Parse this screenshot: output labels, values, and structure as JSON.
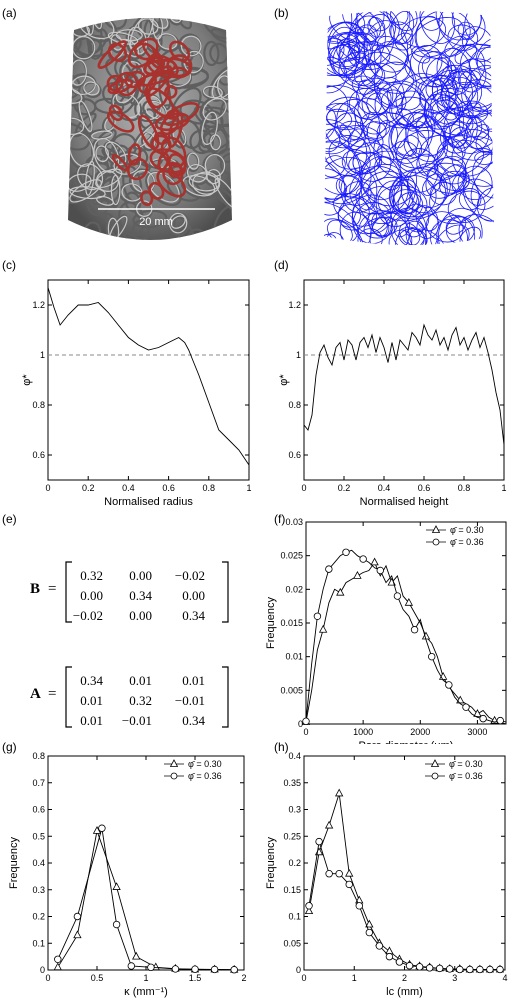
{
  "panels": {
    "a": {
      "label": "(a)",
      "scale_text": "20 mm"
    },
    "b": {
      "label": "(b)"
    },
    "c": {
      "label": "(c)"
    },
    "d": {
      "label": "(d)"
    },
    "e": {
      "label": "(e)"
    },
    "f": {
      "label": "(f)"
    },
    "g": {
      "label": "(g)"
    },
    "h": {
      "label": "(h)"
    }
  },
  "matrices": {
    "B": {
      "name": "B",
      "rows": [
        [
          "0.32",
          "0.00",
          "−0.02"
        ],
        [
          "0.00",
          "0.34",
          "0.00"
        ],
        [
          "−0.02",
          "0.00",
          "0.34"
        ]
      ]
    },
    "A": {
      "name": "A",
      "rows": [
        [
          "0.34",
          "0.01",
          "0.01"
        ],
        [
          "0.01",
          "0.32",
          "−0.01"
        ],
        [
          "0.01",
          "−0.01",
          "0.34"
        ]
      ]
    }
  },
  "colors": {
    "highlight_fiber": "#a8322e",
    "fiber_gray": "#8a8a8a",
    "line_blue": "#1a1aff"
  },
  "chart_data": [
    {
      "id": "c",
      "type": "line",
      "xlabel": "Normalised radius",
      "ylabel": "φ*",
      "xlim": [
        0,
        1
      ],
      "ylim": [
        0.5,
        1.3
      ],
      "xticks": [
        "0",
        "0.2",
        "0.4",
        "0.6",
        "0.8",
        "1"
      ],
      "yticks": [
        "0.6",
        "0.8",
        "1",
        "1.2"
      ],
      "reference_line": 1,
      "x": [
        0,
        0.03,
        0.06,
        0.1,
        0.15,
        0.2,
        0.25,
        0.3,
        0.35,
        0.4,
        0.45,
        0.5,
        0.55,
        0.6,
        0.65,
        0.68,
        0.7,
        0.72,
        0.75,
        0.8,
        0.85,
        0.9,
        0.95,
        1.0
      ],
      "y": [
        1.27,
        1.19,
        1.12,
        1.16,
        1.2,
        1.2,
        1.21,
        1.17,
        1.12,
        1.07,
        1.04,
        1.02,
        1.03,
        1.05,
        1.07,
        1.05,
        1.02,
        0.98,
        0.92,
        0.81,
        0.7,
        0.66,
        0.62,
        0.56
      ]
    },
    {
      "id": "d",
      "type": "line",
      "xlabel": "Normalised height",
      "ylabel": "φ*",
      "xlim": [
        0,
        1
      ],
      "ylim": [
        0.5,
        1.3
      ],
      "xticks": [
        "0",
        "0.2",
        "0.4",
        "0.6",
        "0.8",
        "1"
      ],
      "yticks": [
        "0.6",
        "0.8",
        "1",
        "1.2"
      ],
      "reference_line": 1,
      "x": [
        0,
        0.02,
        0.04,
        0.06,
        0.08,
        0.1,
        0.12,
        0.14,
        0.16,
        0.18,
        0.2,
        0.22,
        0.24,
        0.26,
        0.28,
        0.3,
        0.32,
        0.34,
        0.36,
        0.38,
        0.4,
        0.42,
        0.44,
        0.46,
        0.48,
        0.5,
        0.52,
        0.54,
        0.56,
        0.58,
        0.6,
        0.62,
        0.64,
        0.66,
        0.68,
        0.7,
        0.72,
        0.74,
        0.76,
        0.78,
        0.8,
        0.82,
        0.84,
        0.86,
        0.88,
        0.9,
        0.92,
        0.94,
        0.96,
        0.98,
        1.0
      ],
      "y": [
        0.72,
        0.7,
        0.76,
        0.92,
        1.01,
        1.04,
        0.99,
        0.96,
        1.03,
        1.05,
        0.98,
        1.06,
        1.04,
        0.98,
        1.05,
        1.07,
        1.03,
        1.08,
        1.01,
        1.07,
        1.03,
        0.97,
        1.05,
        0.98,
        1.06,
        1.04,
        1.02,
        1.09,
        1.07,
        1.04,
        1.12,
        1.08,
        1.06,
        1.1,
        1.04,
        1.07,
        1.02,
        1.08,
        1.11,
        1.04,
        1.07,
        1.02,
        1.06,
        1.09,
        1.03,
        1.07,
        1.01,
        0.94,
        0.85,
        0.78,
        0.64
      ]
    },
    {
      "id": "f",
      "type": "line",
      "xlabel": "Pore diameter (μm)",
      "ylabel": "Frequency",
      "xlim": [
        0,
        3500
      ],
      "ylim": [
        0,
        0.03
      ],
      "xticks": [
        "0",
        "1000",
        "2000",
        "3000"
      ],
      "yticks": [
        "0",
        "0.005",
        "0.01",
        "0.015",
        "0.02",
        "0.025",
        "0.03"
      ],
      "legend": [
        "φ̄ = 0.30",
        "φ̄ = 0.36"
      ],
      "series": [
        {
          "name": "φ̄ = 0.30",
          "marker": "triangle",
          "x": [
            0,
            100,
            200,
            300,
            400,
            500,
            600,
            700,
            800,
            900,
            1000,
            1100,
            1200,
            1300,
            1400,
            1500,
            1600,
            1700,
            1800,
            1900,
            2000,
            2100,
            2200,
            2300,
            2400,
            2500,
            2600,
            2700,
            2800,
            2900,
            3000,
            3100,
            3200,
            3300,
            3400,
            3500
          ],
          "y": [
            0.0003,
            0.005,
            0.011,
            0.014,
            0.018,
            0.02,
            0.0195,
            0.021,
            0.0215,
            0.022,
            0.0225,
            0.0228,
            0.024,
            0.022,
            0.0235,
            0.021,
            0.022,
            0.019,
            0.018,
            0.0165,
            0.015,
            0.013,
            0.012,
            0.01,
            0.007,
            0.0055,
            0.0045,
            0.0035,
            0.003,
            0.0025,
            0.0015,
            0.002,
            0.001,
            0.0005,
            0.0003,
            0.0
          ],
          "marker_idx": [
            0,
            3,
            6,
            9,
            12,
            15,
            18,
            21,
            24,
            27,
            30,
            33
          ]
        },
        {
          "name": "φ̄ = 0.36",
          "marker": "circle",
          "x": [
            0,
            100,
            200,
            300,
            400,
            500,
            600,
            700,
            800,
            900,
            1000,
            1100,
            1200,
            1300,
            1400,
            1500,
            1600,
            1700,
            1800,
            1900,
            2000,
            2100,
            2200,
            2300,
            2400,
            2500,
            2600,
            2700,
            2800,
            2900,
            3000,
            3100,
            3200,
            3300,
            3400,
            3500
          ],
          "y": [
            0.0004,
            0.009,
            0.016,
            0.02,
            0.023,
            0.024,
            0.025,
            0.0255,
            0.0258,
            0.025,
            0.0245,
            0.024,
            0.0232,
            0.0228,
            0.021,
            0.022,
            0.019,
            0.017,
            0.016,
            0.014,
            0.0155,
            0.0125,
            0.01,
            0.008,
            0.0065,
            0.0058,
            0.004,
            0.003,
            0.0025,
            0.0015,
            0.001,
            0.0008,
            0.0005,
            0.0003,
            0.0005,
            0.0003
          ],
          "marker_idx": [
            0,
            2,
            4,
            7,
            10,
            13,
            16,
            19,
            22,
            25,
            28,
            31,
            34
          ]
        }
      ]
    },
    {
      "id": "g",
      "type": "line",
      "xlabel": "κ (mm⁻¹)",
      "ylabel": "Frequency",
      "xlim": [
        0,
        2
      ],
      "ylim": [
        0,
        0.8
      ],
      "xticks": [
        "0",
        "0.5",
        "1",
        "1.5",
        "2"
      ],
      "yticks": [
        "0",
        "0.1",
        "0.2",
        "0.3",
        "0.4",
        "0.5",
        "0.6",
        "0.7",
        "0.8"
      ],
      "legend": [
        "φ̄ = 0.30",
        "φ̄ = 0.36"
      ],
      "series": [
        {
          "name": "φ̄ = 0.30",
          "marker": "triangle",
          "x": [
            0.1,
            0.3,
            0.5,
            0.7,
            0.9,
            1.1,
            1.3,
            1.5,
            1.7,
            1.9
          ],
          "y": [
            0.01,
            0.13,
            0.52,
            0.31,
            0.05,
            0.01,
            0.005,
            0.002,
            0.002,
            0.001
          ]
        },
        {
          "name": "φ̄ = 0.36",
          "marker": "circle",
          "x": [
            0.1,
            0.3,
            0.55,
            0.7,
            0.85,
            1.05,
            1.3,
            1.5,
            1.7,
            1.9
          ],
          "y": [
            0.04,
            0.2,
            0.53,
            0.17,
            0.015,
            0.01,
            0.004,
            0.003,
            0.002,
            0.001
          ]
        }
      ]
    },
    {
      "id": "h",
      "type": "line",
      "xlabel": "lc (mm)",
      "ylabel": "Frequency",
      "xlim": [
        0,
        4
      ],
      "ylim": [
        0,
        0.4
      ],
      "xticks": [
        "0",
        "1",
        "2",
        "3",
        "4"
      ],
      "yticks": [
        "0",
        "0.05",
        "0.1",
        "0.15",
        "0.2",
        "0.25",
        "0.3",
        "0.35",
        "0.4"
      ],
      "legend": [
        "φ̄ = 0.30",
        "φ̄ = 0.36"
      ],
      "series": [
        {
          "name": "φ̄ = 0.30",
          "marker": "triangle",
          "x": [
            0.1,
            0.3,
            0.5,
            0.7,
            0.9,
            1.1,
            1.3,
            1.5,
            1.7,
            1.9,
            2.1,
            2.3,
            2.5,
            2.7,
            2.9,
            3.1,
            3.3,
            3.5,
            3.7,
            3.9
          ],
          "y": [
            0.11,
            0.22,
            0.27,
            0.33,
            0.18,
            0.13,
            0.085,
            0.05,
            0.035,
            0.02,
            0.01,
            0.007,
            0.005,
            0.003,
            0.002,
            0.002,
            0.001,
            0.001,
            0.001,
            0.001
          ]
        },
        {
          "name": "φ̄ = 0.36",
          "marker": "circle",
          "x": [
            0.1,
            0.3,
            0.5,
            0.7,
            0.9,
            1.1,
            1.3,
            1.5,
            1.7,
            1.9,
            2.1,
            2.3,
            2.5,
            2.7,
            2.9,
            3.1,
            3.3,
            3.5,
            3.7,
            3.9
          ],
          "y": [
            0.12,
            0.24,
            0.18,
            0.18,
            0.16,
            0.12,
            0.07,
            0.045,
            0.025,
            0.015,
            0.008,
            0.006,
            0.004,
            0.003,
            0.002,
            0.001,
            0.001,
            0.001,
            0.001,
            0.001
          ]
        }
      ]
    }
  ]
}
